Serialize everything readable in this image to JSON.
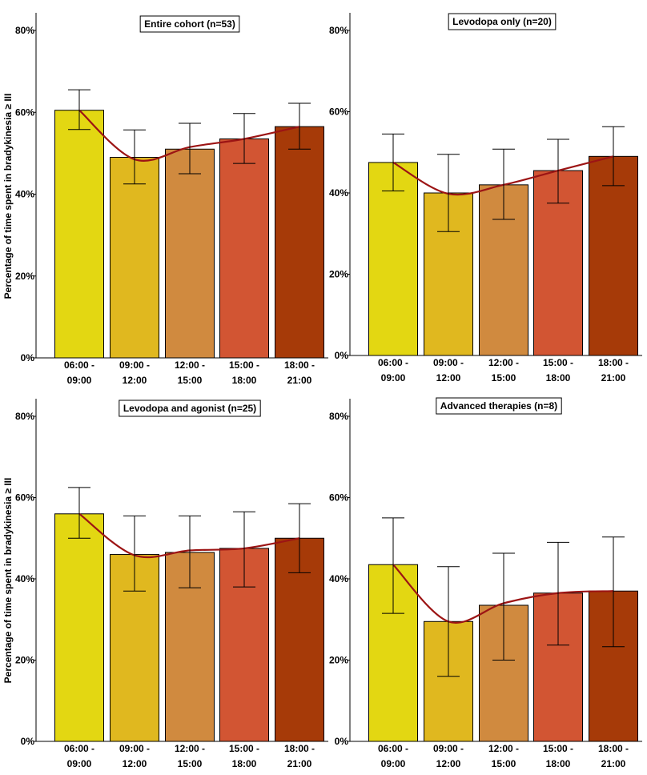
{
  "chart_data": [
    {
      "type": "bar",
      "title": "Entire cohort (n=53)",
      "ylabel": "Percentage of time spent in bradykinesia ≥ III",
      "categories": [
        [
          "06:00 -",
          "09:00"
        ],
        [
          "09:00 -",
          "12:00"
        ],
        [
          "12:00 -",
          "15:00"
        ],
        [
          "15:00 -",
          "18:00"
        ],
        [
          "18:00 -",
          "21:00"
        ]
      ],
      "values": [
        60.5,
        49,
        51,
        53.5,
        56.5
      ],
      "error_low": [
        55.8,
        42.5,
        45,
        47.5,
        51
      ],
      "error_high": [
        65.5,
        55.7,
        57.3,
        59.7,
        62.2
      ],
      "trend": [
        60.5,
        48.5,
        51.5,
        53.5,
        56.5
      ],
      "ylim": [
        0,
        80
      ],
      "yticks": [
        "0%",
        "20%",
        "40%",
        "60%",
        "80%"
      ],
      "ytick_values": [
        0,
        20,
        40,
        60,
        80
      ]
    },
    {
      "type": "bar",
      "title": "Levodopa only (n=20)",
      "ylabel": "",
      "categories": [
        [
          "06:00 -",
          "09:00"
        ],
        [
          "09:00 -",
          "12:00"
        ],
        [
          "12:00 -",
          "15:00"
        ],
        [
          "15:00 -",
          "18:00"
        ],
        [
          "18:00 -",
          "21:00"
        ]
      ],
      "values": [
        47.5,
        40,
        42,
        45.5,
        49
      ],
      "error_low": [
        40.5,
        30.5,
        33.5,
        37.5,
        41.8
      ],
      "error_high": [
        54.5,
        49.5,
        50.8,
        53.2,
        56.3
      ],
      "trend": [
        47.5,
        39.8,
        42,
        45.5,
        49
      ],
      "ylim": [
        0,
        80
      ],
      "yticks": [
        "0%",
        "20%",
        "40%",
        "60%",
        "80%"
      ],
      "ytick_values": [
        0,
        20,
        40,
        60,
        80
      ]
    },
    {
      "type": "bar",
      "title": "Levodopa and agonist (n=25)",
      "ylabel": "Percentage of time spent in bradykinesia ≥ III",
      "categories": [
        [
          "06:00 -",
          "09:00"
        ],
        [
          "09:00 -",
          "12:00"
        ],
        [
          "12:00 -",
          "15:00"
        ],
        [
          "15:00 -",
          "18:00"
        ],
        [
          "18:00 -",
          "21:00"
        ]
      ],
      "values": [
        56,
        46,
        46.5,
        47.5,
        50
      ],
      "error_low": [
        50,
        37,
        37.8,
        38,
        41.5
      ],
      "error_high": [
        62.5,
        55.5,
        55.5,
        56.5,
        58.5
      ],
      "trend": [
        56,
        45.8,
        47,
        47.5,
        50
      ],
      "ylim": [
        0,
        80
      ],
      "yticks": [
        "0%",
        "20%",
        "40%",
        "60%",
        "80%"
      ],
      "ytick_values": [
        0,
        20,
        40,
        60,
        80
      ]
    },
    {
      "type": "bar",
      "title": "Advanced therapies (n=8)",
      "ylabel": "",
      "categories": [
        [
          "06:00 -",
          "09:00"
        ],
        [
          "09:00 -",
          "12:00"
        ],
        [
          "12:00 -",
          "15:00"
        ],
        [
          "15:00 -",
          "18:00"
        ],
        [
          "18:00 -",
          "21:00"
        ]
      ],
      "values": [
        43.5,
        29.5,
        33.5,
        36.5,
        37
      ],
      "error_low": [
        31.5,
        16,
        20,
        23.7,
        23.3
      ],
      "error_high": [
        55,
        43,
        46.3,
        49,
        50.3
      ],
      "trend": [
        43.5,
        29.5,
        34,
        36.5,
        37
      ],
      "ylim": [
        0,
        80
      ],
      "yticks": [
        "0%",
        "20%",
        "40%",
        "60%",
        "80%"
      ],
      "ytick_values": [
        0,
        20,
        40,
        60,
        80
      ]
    }
  ],
  "colors": {
    "bars": [
      "#e3d712",
      "#e0b81f",
      "#d08a3f",
      "#d25533",
      "#a63a08"
    ],
    "trend": "#9c1414",
    "axis": "#000000",
    "error": "#000000"
  }
}
